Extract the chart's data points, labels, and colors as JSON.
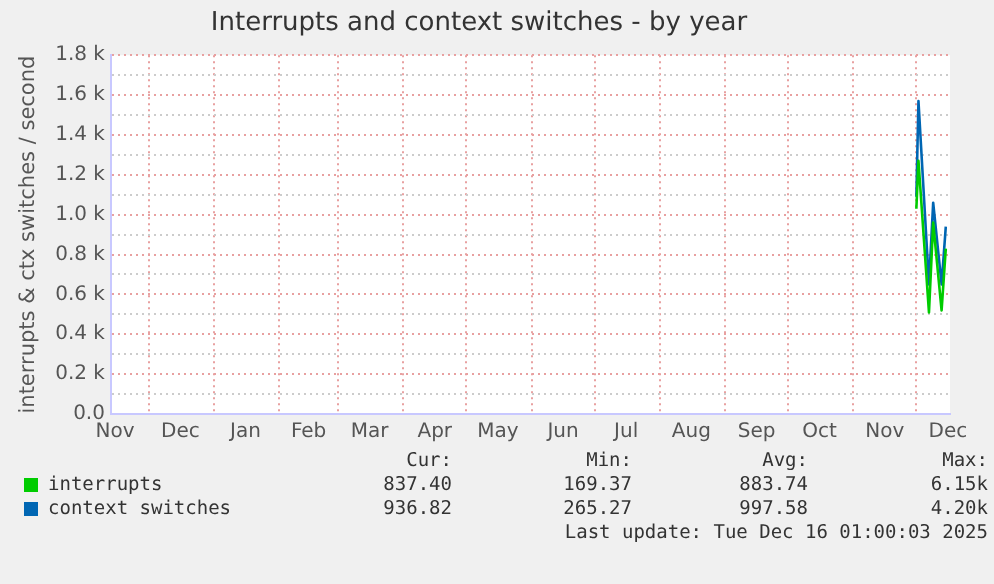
{
  "chart_data": {
    "type": "line",
    "title": "Interrupts and context switches - by year",
    "ylabel": "interrupts & ctx switches / second",
    "x": [
      "2025-12-01",
      "2025-12-02",
      "2025-12-07",
      "2025-12-09",
      "2025-12-13",
      "2025-12-15"
    ],
    "series": [
      {
        "name": "interrupts",
        "color": "#00cc00",
        "values": [
          1030,
          1270,
          510,
          960,
          520,
          830
        ]
      },
      {
        "name": "context switches",
        "color": "#0066b3",
        "values": [
          1090,
          1570,
          650,
          1060,
          650,
          940
        ]
      }
    ],
    "xlim": [
      "2024-11-13",
      "2025-12-17"
    ],
    "xticks": [
      {
        "value": "2024-11-15",
        "label": "Nov"
      },
      {
        "value": "2024-12-01",
        "label": null
      },
      {
        "value": "2024-12-16",
        "label": "Dec"
      },
      {
        "value": "2025-01-01",
        "label": null
      },
      {
        "value": "2025-01-16",
        "label": "Jan"
      },
      {
        "value": "2025-02-01",
        "label": null
      },
      {
        "value": "2025-02-15",
        "label": "Feb"
      },
      {
        "value": "2025-03-01",
        "label": null
      },
      {
        "value": "2025-03-16",
        "label": "Mar"
      },
      {
        "value": "2025-04-01",
        "label": null
      },
      {
        "value": "2025-04-16",
        "label": "Apr"
      },
      {
        "value": "2025-05-01",
        "label": null
      },
      {
        "value": "2025-05-16",
        "label": "May"
      },
      {
        "value": "2025-06-01",
        "label": null
      },
      {
        "value": "2025-06-16",
        "label": "Jun"
      },
      {
        "value": "2025-07-01",
        "label": null
      },
      {
        "value": "2025-07-16",
        "label": "Jul"
      },
      {
        "value": "2025-08-01",
        "label": null
      },
      {
        "value": "2025-08-16",
        "label": "Aug"
      },
      {
        "value": "2025-09-01",
        "label": null
      },
      {
        "value": "2025-09-16",
        "label": "Sep"
      },
      {
        "value": "2025-10-01",
        "label": null
      },
      {
        "value": "2025-10-16",
        "label": "Oct"
      },
      {
        "value": "2025-11-01",
        "label": null
      },
      {
        "value": "2025-11-16",
        "label": "Nov"
      },
      {
        "value": "2025-12-01",
        "label": null
      },
      {
        "value": "2025-12-16",
        "label": "Dec"
      }
    ],
    "ylim": [
      0,
      1800
    ],
    "yticks": [
      {
        "value": 0,
        "label": "0.0"
      },
      {
        "value": 100,
        "label": null
      },
      {
        "value": 200,
        "label": "0.2 k"
      },
      {
        "value": 300,
        "label": null
      },
      {
        "value": 400,
        "label": "0.4 k"
      },
      {
        "value": 500,
        "label": null
      },
      {
        "value": 600,
        "label": "0.6 k"
      },
      {
        "value": 700,
        "label": null
      },
      {
        "value": 800,
        "label": "0.8 k"
      },
      {
        "value": 900,
        "label": null
      },
      {
        "value": 1000,
        "label": "1.0 k"
      },
      {
        "value": 1100,
        "label": null
      },
      {
        "value": 1200,
        "label": "1.2 k"
      },
      {
        "value": 1300,
        "label": null
      },
      {
        "value": 1400,
        "label": "1.4 k"
      },
      {
        "value": 1500,
        "label": null
      },
      {
        "value": 1600,
        "label": "1.6 k"
      },
      {
        "value": 1700,
        "label": null
      },
      {
        "value": 1800,
        "label": "1.8 k"
      }
    ],
    "grid": true,
    "legend": "bottom left",
    "marker": "none",
    "line_style": "solid",
    "annotations": [
      "Cur:",
      "Min:",
      "Avg:",
      "Max:",
      "837.40",
      "169.37",
      "883.74",
      "6.15k",
      "936.82",
      "265.27",
      "997.58",
      "4.20k",
      "Last update: Tue Dec 16 01:00:03 2025"
    ]
  }
}
